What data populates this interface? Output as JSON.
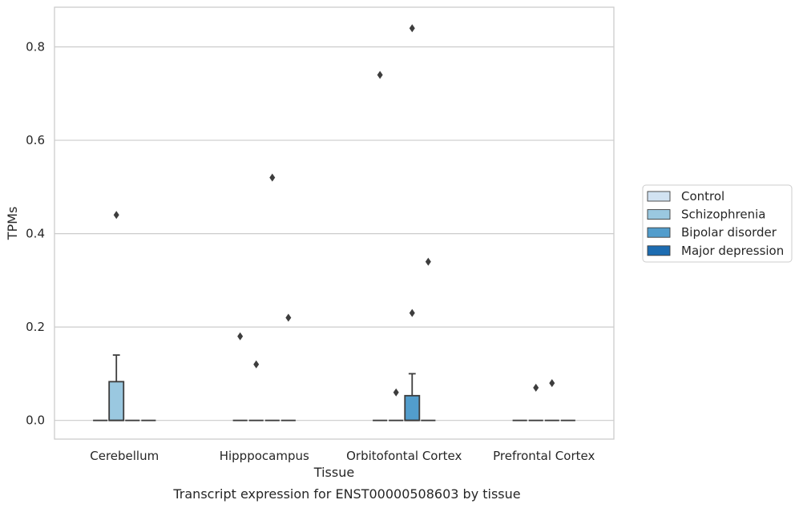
{
  "chart_data": {
    "type": "box",
    "caption": "Transcript expression for ENST00000508603 by tissue",
    "xlabel": "Tissue",
    "ylabel": "TPMs",
    "ylim": [
      -0.04,
      0.885
    ],
    "yticks": [
      0.0,
      0.2,
      0.4,
      0.6,
      0.8
    ],
    "ytick_labels": [
      "0.0",
      "0.2",
      "0.4",
      "0.6",
      "0.8"
    ],
    "grid": "horizontal",
    "legend_position": "right",
    "categories": [
      "Cerebellum",
      "Hipppocampus",
      "Orbitofontal Cortex",
      "Prefrontal Cortex"
    ],
    "series": [
      {
        "name": "Control",
        "color": "#d1e2f2"
      },
      {
        "name": "Schizophrenia",
        "color": "#9ac8e0"
      },
      {
        "name": "Bipolar disorder",
        "color": "#529dcc"
      },
      {
        "name": "Major depression",
        "color": "#1d6cb1"
      }
    ],
    "boxes": [
      {
        "category": 0,
        "series": 0,
        "q1": 0,
        "median": 0,
        "q3": 0,
        "whisker_low": 0,
        "whisker_high": 0,
        "outliers": []
      },
      {
        "category": 0,
        "series": 1,
        "q1": 0,
        "median": 0,
        "q3": 0.083,
        "whisker_low": 0,
        "whisker_high": 0.14,
        "outliers": [
          0.44
        ]
      },
      {
        "category": 0,
        "series": 2,
        "q1": 0,
        "median": 0,
        "q3": 0,
        "whisker_low": 0,
        "whisker_high": 0,
        "outliers": []
      },
      {
        "category": 0,
        "series": 3,
        "q1": 0,
        "median": 0,
        "q3": 0,
        "whisker_low": 0,
        "whisker_high": 0,
        "outliers": []
      },
      {
        "category": 1,
        "series": 0,
        "q1": 0,
        "median": 0,
        "q3": 0,
        "whisker_low": 0,
        "whisker_high": 0,
        "outliers": [
          0.18
        ]
      },
      {
        "category": 1,
        "series": 1,
        "q1": 0,
        "median": 0,
        "q3": 0,
        "whisker_low": 0,
        "whisker_high": 0,
        "outliers": [
          0.12
        ]
      },
      {
        "category": 1,
        "series": 2,
        "q1": 0,
        "median": 0,
        "q3": 0,
        "whisker_low": 0,
        "whisker_high": 0,
        "outliers": [
          0.52
        ]
      },
      {
        "category": 1,
        "series": 3,
        "q1": 0,
        "median": 0,
        "q3": 0,
        "whisker_low": 0,
        "whisker_high": 0,
        "outliers": [
          0.22
        ]
      },
      {
        "category": 2,
        "series": 0,
        "q1": 0,
        "median": 0,
        "q3": 0,
        "whisker_low": 0,
        "whisker_high": 0,
        "outliers": [
          0.74
        ]
      },
      {
        "category": 2,
        "series": 1,
        "q1": 0,
        "median": 0,
        "q3": 0,
        "whisker_low": 0,
        "whisker_high": 0,
        "outliers": [
          0.06
        ]
      },
      {
        "category": 2,
        "series": 2,
        "q1": 0,
        "median": 0,
        "q3": 0.053,
        "whisker_low": 0,
        "whisker_high": 0.1,
        "outliers": [
          0.84,
          0.23
        ]
      },
      {
        "category": 2,
        "series": 3,
        "q1": 0,
        "median": 0,
        "q3": 0,
        "whisker_low": 0,
        "whisker_high": 0,
        "outliers": [
          0.34
        ]
      },
      {
        "category": 3,
        "series": 0,
        "q1": 0,
        "median": 0,
        "q3": 0,
        "whisker_low": 0,
        "whisker_high": 0,
        "outliers": []
      },
      {
        "category": 3,
        "series": 1,
        "q1": 0,
        "median": 0,
        "q3": 0,
        "whisker_low": 0,
        "whisker_high": 0,
        "outliers": [
          0.07
        ]
      },
      {
        "category": 3,
        "series": 2,
        "q1": 0,
        "median": 0,
        "q3": 0,
        "whisker_low": 0,
        "whisker_high": 0,
        "outliers": [
          0.08
        ]
      },
      {
        "category": 3,
        "series": 3,
        "q1": 0,
        "median": 0,
        "q3": 0,
        "whisker_low": 0,
        "whisker_high": 0,
        "outliers": []
      }
    ],
    "style": {
      "line_color": "#3d3d3d",
      "grid_color": "#cccccc",
      "frame_color": "#cccccc",
      "text_color": "#262626"
    }
  }
}
